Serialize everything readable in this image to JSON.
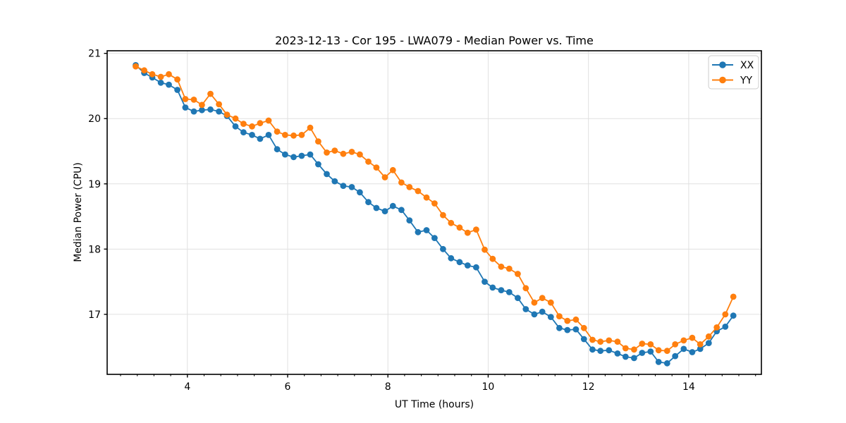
{
  "figure": {
    "background": "#ffffff"
  },
  "chart_data": {
    "type": "line",
    "title": "2023-12-13 - Cor 195 - LWA079 - Median Power vs. Time",
    "xlabel": "UT Time (hours)",
    "ylabel": "Median Power (CPU)",
    "xlim": [
      2.4,
      15.45
    ],
    "ylim": [
      16.08,
      21.04
    ],
    "xticks": [
      4,
      6,
      8,
      10,
      12,
      14
    ],
    "yticks": [
      17,
      18,
      19,
      20,
      21
    ],
    "x_minor_tick_step": 0.33333,
    "grid": true,
    "grid_color": "#e0e0e0",
    "spine_color": "#000000",
    "legend_position": "upper right",
    "x": [
      2.97,
      3.14,
      3.3,
      3.47,
      3.63,
      3.8,
      3.96,
      4.13,
      4.29,
      4.46,
      4.63,
      4.79,
      4.96,
      5.12,
      5.29,
      5.45,
      5.62,
      5.79,
      5.95,
      6.12,
      6.28,
      6.45,
      6.61,
      6.78,
      6.94,
      7.11,
      7.28,
      7.44,
      7.61,
      7.77,
      7.94,
      8.1,
      8.27,
      8.43,
      8.6,
      8.77,
      8.93,
      9.1,
      9.26,
      9.43,
      9.59,
      9.76,
      9.93,
      10.09,
      10.26,
      10.42,
      10.59,
      10.75,
      10.92,
      11.08,
      11.25,
      11.42,
      11.58,
      11.75,
      11.91,
      12.08,
      12.24,
      12.41,
      12.58,
      12.74,
      12.91,
      13.07,
      13.24,
      13.4,
      13.57,
      13.73,
      13.9,
      14.07,
      14.23,
      14.4,
      14.56,
      14.73,
      14.89
    ],
    "series": [
      {
        "name": "XX",
        "color": "#1f77b4",
        "y": [
          20.82,
          20.7,
          20.63,
          20.55,
          20.52,
          20.44,
          20.17,
          20.11,
          20.13,
          20.14,
          20.11,
          20.04,
          19.88,
          19.79,
          19.75,
          19.69,
          19.75,
          19.53,
          19.45,
          19.41,
          19.43,
          19.45,
          19.3,
          19.15,
          19.04,
          18.97,
          18.95,
          18.87,
          18.72,
          18.63,
          18.58,
          18.66,
          18.6,
          18.44,
          18.26,
          18.29,
          18.17,
          18.0,
          17.86,
          17.8,
          17.75,
          17.72,
          17.5,
          17.41,
          17.37,
          17.34,
          17.25,
          17.08,
          17.0,
          17.04,
          16.96,
          16.79,
          16.76,
          16.77,
          16.62,
          16.46,
          16.44,
          16.45,
          16.4,
          16.35,
          16.33,
          16.41,
          16.43,
          16.27,
          16.25,
          16.36,
          16.47,
          16.42,
          16.47,
          16.56,
          16.74,
          16.81,
          16.98
        ]
      },
      {
        "name": "YY",
        "color": "#ff7f0e",
        "y": [
          20.8,
          20.74,
          20.68,
          20.64,
          20.68,
          20.6,
          20.3,
          20.29,
          20.21,
          20.38,
          20.22,
          20.06,
          20.0,
          19.92,
          19.88,
          19.93,
          19.97,
          19.8,
          19.75,
          19.74,
          19.75,
          19.86,
          19.65,
          19.48,
          19.51,
          19.46,
          19.49,
          19.45,
          19.34,
          19.25,
          19.1,
          19.21,
          19.02,
          18.95,
          18.89,
          18.79,
          18.7,
          18.52,
          18.4,
          18.33,
          18.25,
          18.3,
          17.99,
          17.85,
          17.73,
          17.7,
          17.62,
          17.4,
          17.18,
          17.25,
          17.18,
          16.97,
          16.9,
          16.92,
          16.79,
          16.61,
          16.58,
          16.6,
          16.58,
          16.48,
          16.46,
          16.55,
          16.54,
          16.45,
          16.44,
          16.54,
          16.6,
          16.64,
          16.54,
          16.66,
          16.8,
          17.0,
          17.27
        ]
      }
    ]
  }
}
